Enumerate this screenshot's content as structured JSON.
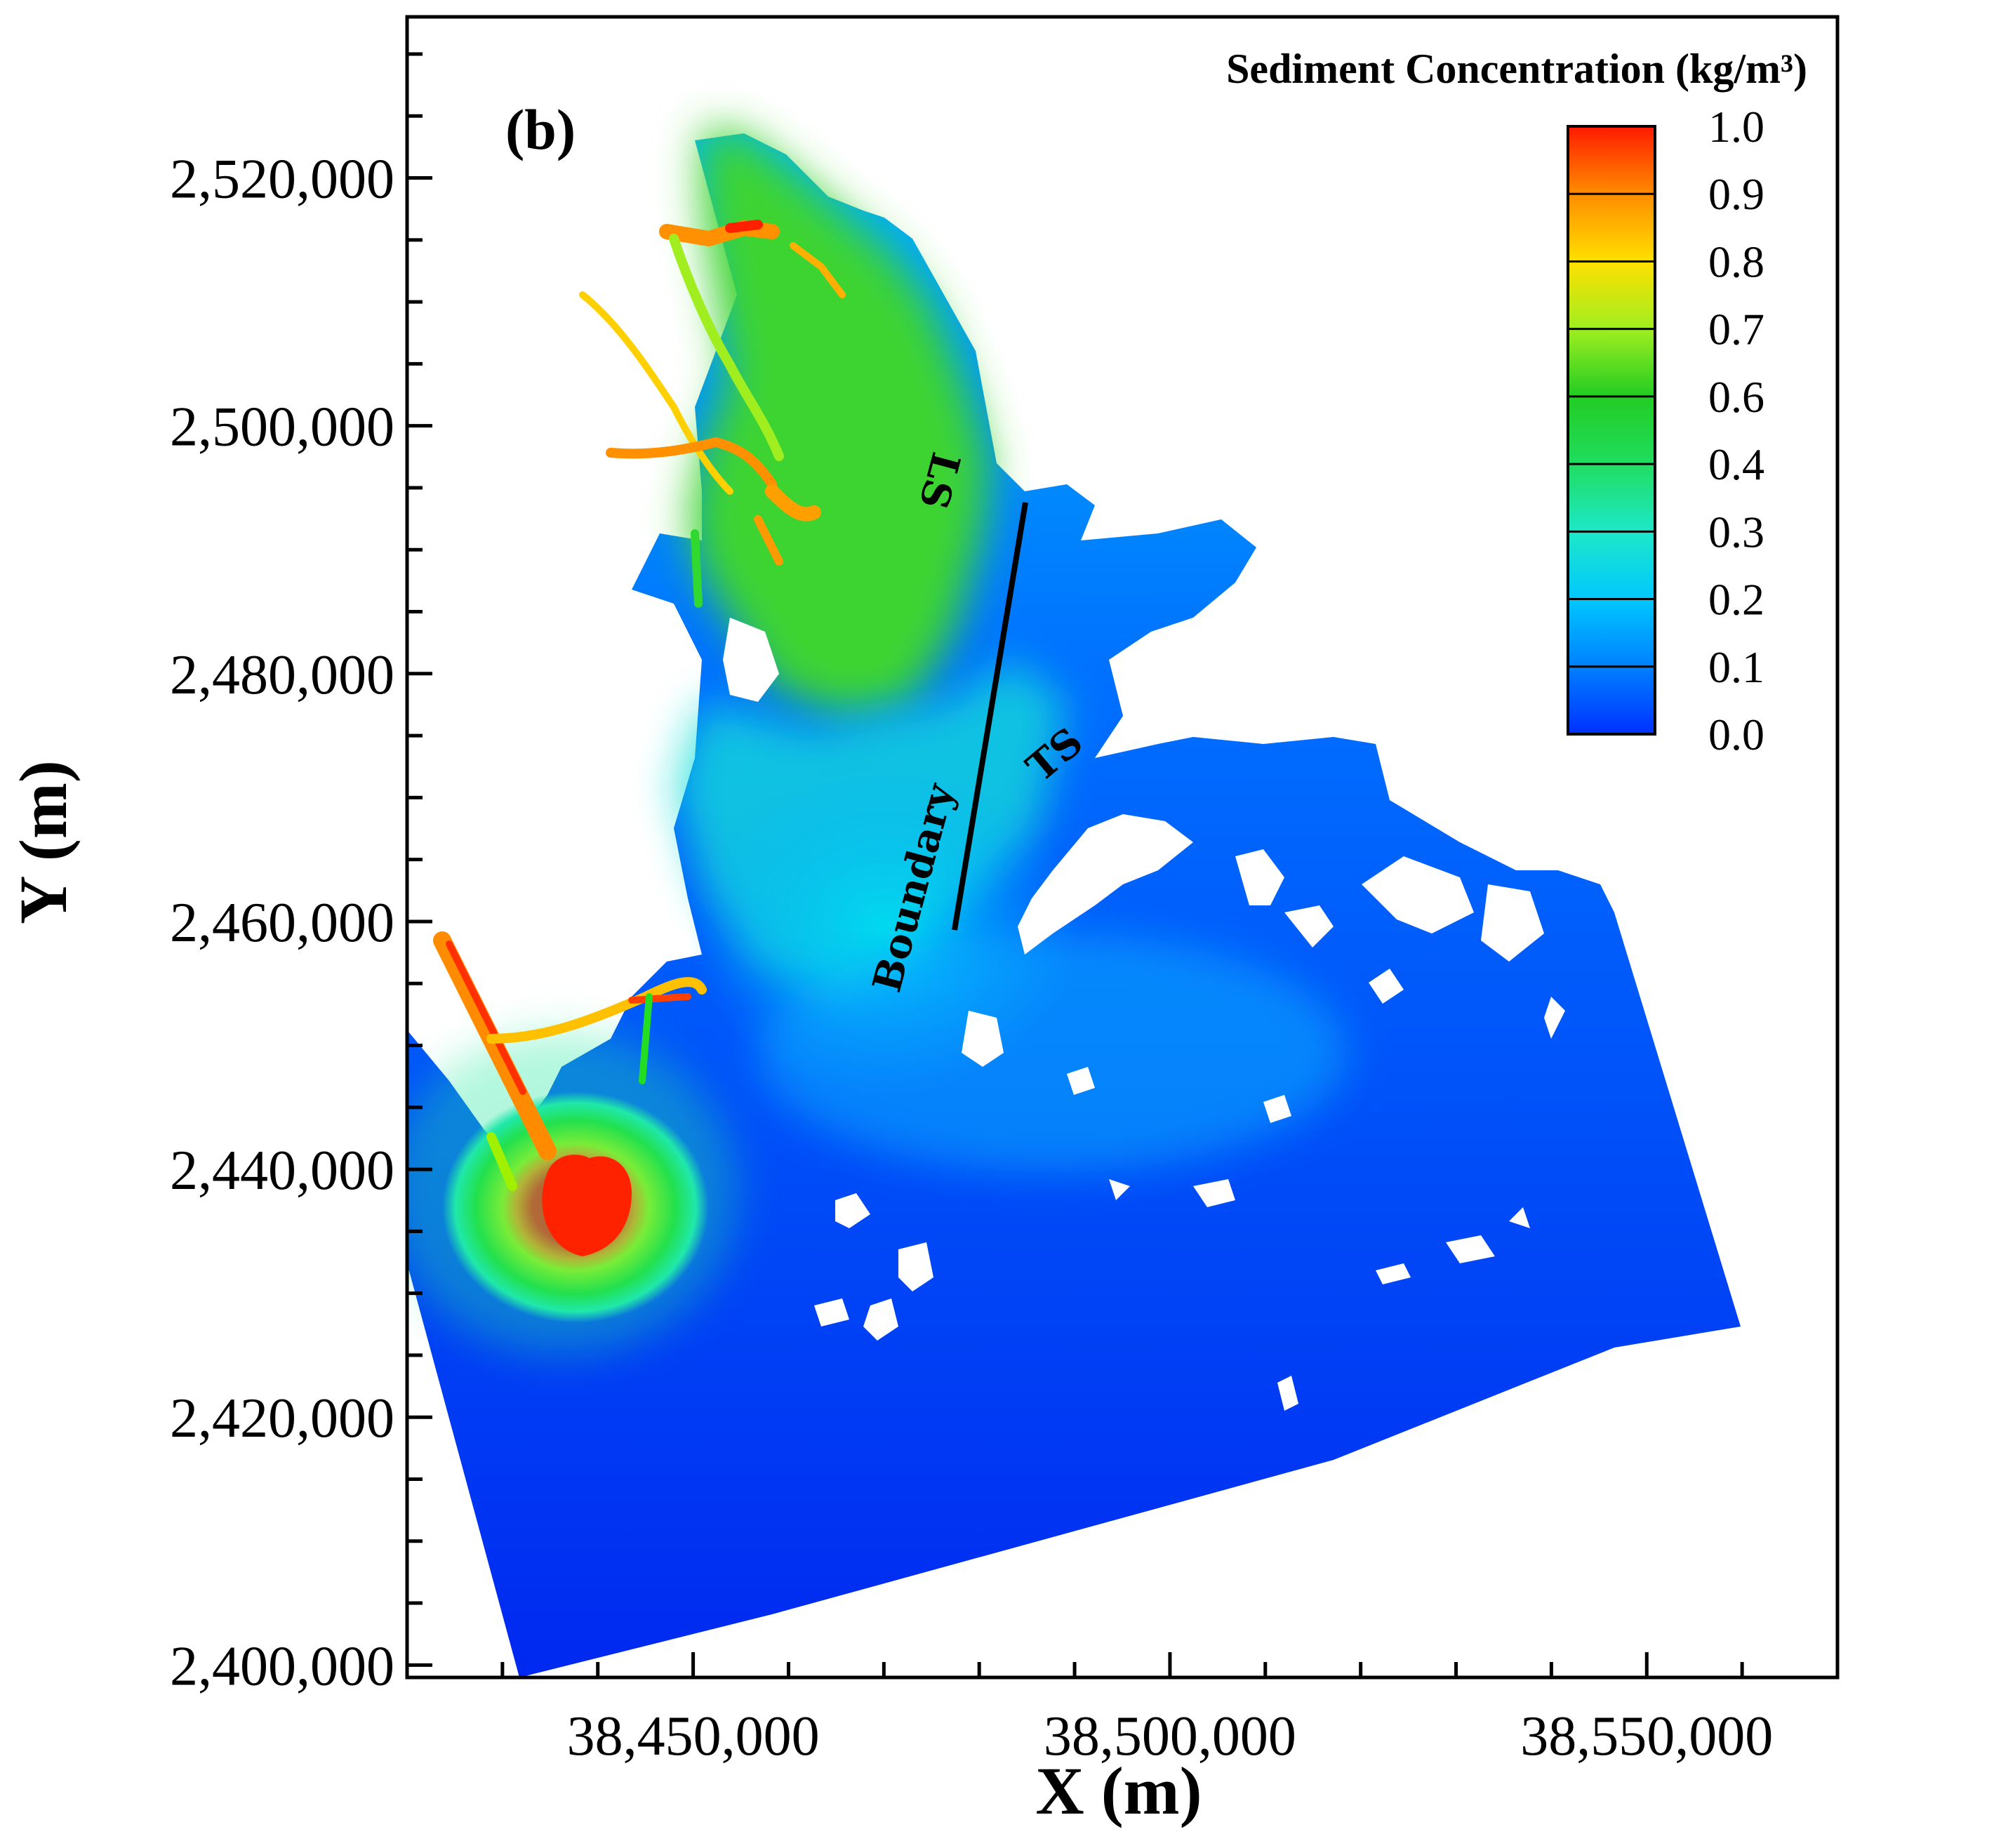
{
  "panel_label": "(b)",
  "legend": {
    "title": "Sediment Concentration (kg/m³)",
    "levels": [
      "1.0",
      "0.9",
      "0.8",
      "0.7",
      "0.6",
      "0.4",
      "0.3",
      "0.2",
      "0.1",
      "0.0"
    ],
    "colors": [
      "#ff1a00",
      "#ff8c00",
      "#ffe000",
      "#a0ee20",
      "#22cc22",
      "#20dd60",
      "#1ee8c8",
      "#00c8ff",
      "#0080ff",
      "#0030ff"
    ]
  },
  "map_labels": {
    "ls": "LS",
    "ts": "TS",
    "boundary": "Boundary"
  },
  "chart_data": {
    "type": "heatmap",
    "xlabel": "X (m)",
    "ylabel": "Y (m)",
    "xlim": [
      38420000,
      38570000
    ],
    "ylim": [
      2399000,
      2533000
    ],
    "x_ticks": [
      {
        "value": 38450000,
        "label": "38,450,000"
      },
      {
        "value": 38500000,
        "label": "38,500,000"
      },
      {
        "value": 38550000,
        "label": "38,550,000"
      }
    ],
    "y_ticks": [
      {
        "value": 2400000,
        "label": "2,400,000"
      },
      {
        "value": 2420000,
        "label": "2,420,000"
      },
      {
        "value": 2440000,
        "label": "2,440,000"
      },
      {
        "value": 2460000,
        "label": "2,460,000"
      },
      {
        "value": 2480000,
        "label": "2,480,000"
      },
      {
        "value": 2500000,
        "label": "2,500,000"
      },
      {
        "value": 2520000,
        "label": "2,520,000"
      }
    ],
    "colorbar_range": [
      0.0,
      1.0
    ]
  }
}
